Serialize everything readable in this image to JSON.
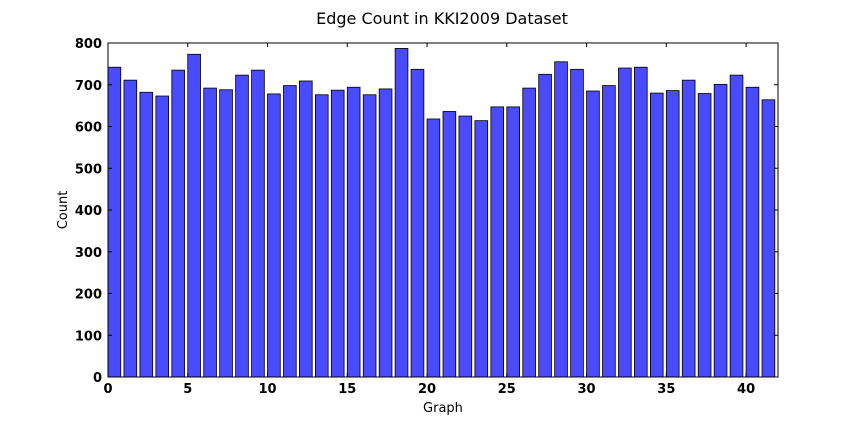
{
  "chart_data": {
    "type": "bar",
    "title": "Edge Count in KKI2009 Dataset",
    "xlabel": "Graph",
    "ylabel": "Count",
    "xlim": [
      0,
      42
    ],
    "ylim": [
      0,
      800
    ],
    "x_ticks": [
      "0",
      "5",
      "10",
      "15",
      "20",
      "25",
      "30",
      "35",
      "40"
    ],
    "y_ticks": [
      "0",
      "100",
      "200",
      "300",
      "400",
      "500",
      "600",
      "700",
      "800"
    ],
    "bar_color": "#4a4aff",
    "bar_edge_color": "#000000",
    "grid": false,
    "categories": [
      "0",
      "1",
      "2",
      "3",
      "4",
      "5",
      "6",
      "7",
      "8",
      "9",
      "10",
      "11",
      "12",
      "13",
      "14",
      "15",
      "16",
      "17",
      "18",
      "19",
      "20",
      "21",
      "22",
      "23",
      "24",
      "25",
      "26",
      "27",
      "28",
      "29",
      "30",
      "31",
      "32",
      "33",
      "34",
      "35",
      "36",
      "37",
      "38",
      "39",
      "40",
      "41"
    ],
    "values": [
      742,
      711,
      682,
      673,
      735,
      773,
      692,
      688,
      723,
      735,
      678,
      698,
      709,
      676,
      687,
      694,
      676,
      690,
      787,
      737,
      618,
      636,
      625,
      614,
      647,
      647,
      692,
      725,
      755,
      737,
      685,
      698,
      740,
      742,
      680,
      686,
      711,
      679,
      701,
      723,
      694,
      664
    ]
  }
}
